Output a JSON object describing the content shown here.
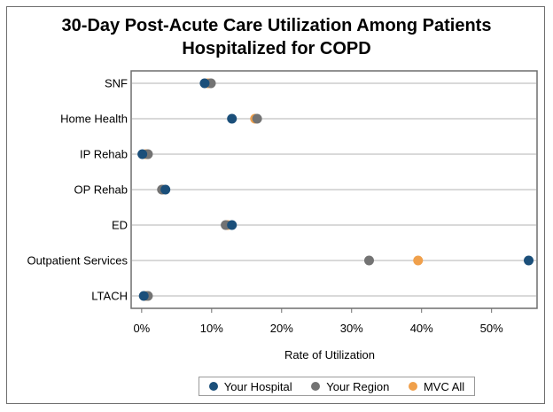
{
  "chart_data": {
    "type": "dot",
    "title_line1": "30-Day Post-Acute Care Utilization Among Patients",
    "title_line2": "Hospitalized for COPD",
    "xlabel": "Rate of Utilization",
    "xlim": [
      -1.5,
      56.5
    ],
    "xticks": [
      0,
      10,
      20,
      30,
      40,
      50
    ],
    "xtick_labels": [
      "0%",
      "10%",
      "20%",
      "30%",
      "40%",
      "50%"
    ],
    "categories": [
      "SNF",
      "Home Health",
      "IP Rehab",
      "OP Rehab",
      "ED",
      "Outpatient Services",
      "LTACH"
    ],
    "series": [
      {
        "name": "MVC All",
        "color": "#f0a04b",
        "values": [
          9.5,
          16.2,
          0.6,
          3.0,
          12.3,
          39.5,
          0.6
        ]
      },
      {
        "name": "Your Region",
        "color": "#737373",
        "values": [
          9.9,
          16.5,
          0.9,
          2.9,
          12.0,
          32.5,
          0.9
        ]
      },
      {
        "name": "Your Hospital",
        "color": "#1b4f7a",
        "values": [
          9.0,
          12.9,
          0.1,
          3.4,
          12.9,
          55.3,
          0.3
        ]
      }
    ],
    "legend": [
      "Your Hospital",
      "Your Region",
      "MVC All"
    ]
  }
}
